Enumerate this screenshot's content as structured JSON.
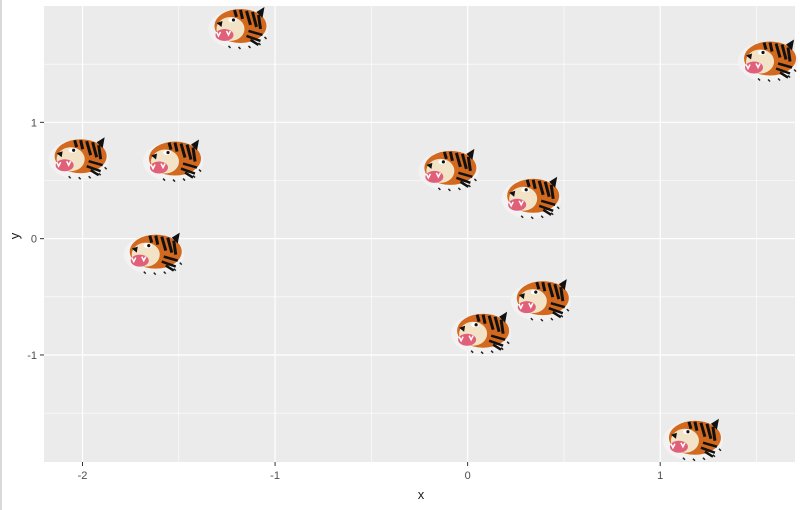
{
  "chart_data": {
    "type": "scatter",
    "marker": "tiger-head-icon",
    "title": "",
    "xlabel": "x",
    "ylabel": "y",
    "xlim": [
      -2.2,
      1.7
    ],
    "ylim": [
      -1.92,
      2.0
    ],
    "grid": true,
    "legend": "none",
    "x_ticks": [
      -2,
      -1,
      0,
      1
    ],
    "x_tick_labels": [
      "-2",
      "-1",
      "0",
      "1"
    ],
    "y_ticks": [
      -1,
      0,
      1
    ],
    "y_tick_labels": [
      "-1",
      "0",
      "1"
    ],
    "points": [
      {
        "x": -1.19,
        "y": 1.82
      },
      {
        "x": 1.56,
        "y": 1.54
      },
      {
        "x": -2.02,
        "y": 0.7
      },
      {
        "x": -1.53,
        "y": 0.68
      },
      {
        "x": -0.1,
        "y": 0.6
      },
      {
        "x": 0.33,
        "y": 0.36
      },
      {
        "x": -1.63,
        "y": -0.12
      },
      {
        "x": 0.38,
        "y": -0.52
      },
      {
        "x": 0.07,
        "y": -0.8
      },
      {
        "x": 1.17,
        "y": -1.72
      }
    ]
  },
  "style": {
    "panel_bg": "#ebebeb",
    "grid_major": "#ffffff",
    "tick_color": "#333333",
    "tiger_orange": "#d2691e",
    "tiger_mouth": "#e0607a"
  }
}
